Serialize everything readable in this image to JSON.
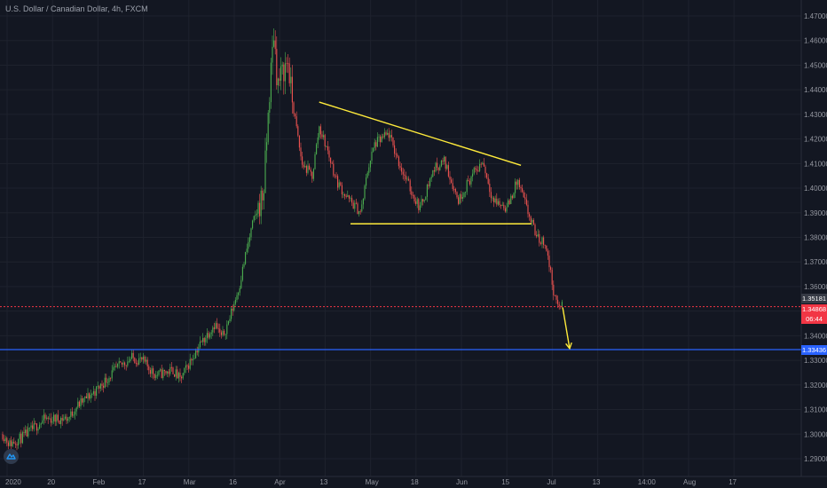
{
  "symbol_title": "U.S. Dollar / Canadian Dollar, 4h, FXCM",
  "colors": {
    "background": "#131722",
    "up_candle": "#4caf50",
    "down_candle": "#ef5350",
    "pattern_lines": "#ffeb3b",
    "current_price_line": "#f23645",
    "target_line": "#2962ff"
  },
  "chart_data": {
    "type": "candlestick",
    "title": "U.S. Dollar / Canadian Dollar, 4h, FXCM",
    "ylim": [
      1.285,
      1.475
    ],
    "y_ticks": [
      "1.47000",
      "1.46000",
      "1.45000",
      "1.44000",
      "1.43000",
      "1.42000",
      "1.41000",
      "1.40000",
      "1.39000",
      "1.38000",
      "1.37000",
      "1.36000",
      "1.35000",
      "1.34000",
      "1.33000",
      "1.32000",
      "1.31000",
      "1.30000",
      "1.29000"
    ],
    "x_ticks": [
      "2020",
      "20",
      "Feb",
      "17",
      "Mar",
      "16",
      "Apr",
      "13",
      "May",
      "18",
      "Jun",
      "15",
      "Jul",
      "13",
      "14:00",
      "Aug",
      "17"
    ],
    "price_path": [
      [
        "2020-01-01",
        1.3
      ],
      [
        "2020-01-03",
        1.296
      ],
      [
        "2020-01-07",
        1.299
      ],
      [
        "2020-01-13",
        1.306
      ],
      [
        "2020-01-20",
        1.3065
      ],
      [
        "2020-01-22",
        1.311
      ],
      [
        "2020-01-28",
        1.318
      ],
      [
        "2020-02-03",
        1.327
      ],
      [
        "2020-02-07",
        1.331
      ],
      [
        "2020-02-10",
        1.33
      ],
      [
        "2020-02-14",
        1.324
      ],
      [
        "2020-02-19",
        1.326
      ],
      [
        "2020-02-21",
        1.322
      ],
      [
        "2020-02-26",
        1.335
      ],
      [
        "2020-03-02",
        1.345
      ],
      [
        "2020-03-04",
        1.339
      ],
      [
        "2020-03-06",
        1.346
      ],
      [
        "2020-03-09",
        1.36
      ],
      [
        "2020-03-11",
        1.374
      ],
      [
        "2020-03-13",
        1.386
      ],
      [
        "2020-03-16",
        1.398
      ],
      [
        "2020-03-18",
        1.445
      ],
      [
        "2020-03-19",
        1.464
      ],
      [
        "2020-03-20",
        1.442
      ],
      [
        "2020-03-23",
        1.452
      ],
      [
        "2020-03-24",
        1.438
      ],
      [
        "2020-03-27",
        1.41
      ],
      [
        "2020-03-30",
        1.405
      ],
      [
        "2020-04-01",
        1.425
      ],
      [
        "2020-04-03",
        1.417
      ],
      [
        "2020-04-06",
        1.403
      ],
      [
        "2020-04-09",
        1.396
      ],
      [
        "2020-04-13",
        1.39
      ],
      [
        "2020-04-15",
        1.408
      ],
      [
        "2020-04-17",
        1.418
      ],
      [
        "2020-04-21",
        1.422
      ],
      [
        "2020-04-24",
        1.41
      ],
      [
        "2020-04-28",
        1.397
      ],
      [
        "2020-04-30",
        1.392
      ],
      [
        "2020-05-04",
        1.408
      ],
      [
        "2020-05-07",
        1.411
      ],
      [
        "2020-05-11",
        1.395
      ],
      [
        "2020-05-14",
        1.403
      ],
      [
        "2020-05-18",
        1.411
      ],
      [
        "2020-05-21",
        1.395
      ],
      [
        "2020-05-25",
        1.392
      ],
      [
        "2020-05-28",
        1.403
      ],
      [
        "2020-06-01",
        1.386
      ],
      [
        "2020-06-03",
        1.379
      ],
      [
        "2020-06-05",
        1.378
      ],
      [
        "2020-06-08",
        1.353
      ],
      [
        "2020-06-10",
        1.352
      ]
    ],
    "pattern_lines": [
      {
        "from": [
          "2020-04-01",
          1.435
        ],
        "to": [
          "2020-05-29",
          1.4093
        ]
      },
      {
        "from": [
          "2020-04-10",
          1.3855
        ],
        "to": [
          "2020-06-01",
          1.3855
        ]
      }
    ],
    "projection_arrow": {
      "from": [
        "2020-06-10",
        1.3515
      ],
      "to": [
        "2020-06-12",
        1.3348
      ]
    },
    "horizontal_levels": [
      {
        "price": 1.35181,
        "label": "1.35181",
        "style": "dotted"
      },
      {
        "price": 1.33436,
        "label": "1.33436",
        "style": "solid"
      }
    ]
  },
  "price_badges": {
    "current": "1.35181",
    "bid": "1.34868",
    "countdown": "06:44",
    "target": "1.33436"
  }
}
